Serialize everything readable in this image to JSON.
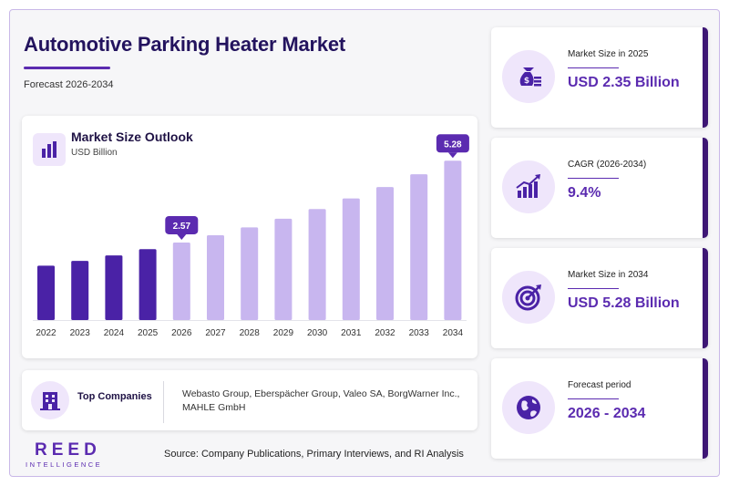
{
  "header": {
    "title": "Automotive Parking Heater Market",
    "subtitle": "Forecast 2026-2034"
  },
  "chart_card": {
    "title": "Market Size Outlook",
    "unit": "USD Billion",
    "icon": "bar-chart-icon"
  },
  "chart_data": {
    "type": "bar",
    "title": "Market Size Outlook",
    "ylabel": "USD Billion",
    "categories": [
      "2022",
      "2023",
      "2024",
      "2025",
      "2026",
      "2027",
      "2028",
      "2029",
      "2030",
      "2031",
      "2032",
      "2033",
      "2034"
    ],
    "values": [
      1.8,
      1.96,
      2.14,
      2.35,
      2.57,
      2.81,
      3.07,
      3.36,
      3.68,
      4.03,
      4.41,
      4.83,
      5.28
    ],
    "historical_through": "2025",
    "ylim": [
      0,
      5.5
    ],
    "grid": false,
    "callouts": [
      {
        "category": "2026",
        "label": "2.57"
      },
      {
        "category": "2034",
        "label": "5.28"
      }
    ],
    "colors": {
      "historical": "#4a22a6",
      "forecast": "#c8b6ef",
      "callout": "#5b2bb0"
    }
  },
  "companies": {
    "label": "Top Companies",
    "icon": "building-icon",
    "list": "Webasto Group, Eberspächer Group, Valeo SA, BorgWarner Inc., MAHLE GmbH"
  },
  "logo": {
    "main": "REED",
    "sub": "INTELLIGENCE"
  },
  "source": "Source: Company Publications, Primary Interviews, and RI Analysis",
  "stats": [
    {
      "label": "Market Size in 2025",
      "value": "USD 2.35 Billion",
      "icon": "money-bag-icon"
    },
    {
      "label": "CAGR (2026-2034)",
      "value": "9.4%",
      "icon": "growth-chart-icon"
    },
    {
      "label": "Market Size in 2034",
      "value": "USD 5.28 Billion",
      "icon": "target-icon"
    },
    {
      "label": "Forecast period",
      "value": "2026 - 2034",
      "icon": "globe-icon"
    }
  ],
  "colors": {
    "brand": "#5b2bb0",
    "dark": "#23135e",
    "accent_light": "#efe6fb",
    "card_border": "#3d1674"
  }
}
